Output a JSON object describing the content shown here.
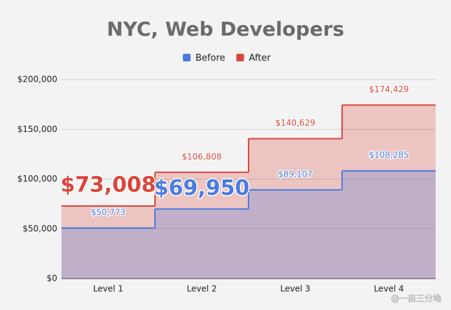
{
  "chart_data": {
    "type": "stepped-area",
    "title": "NYC, Web Developers",
    "categories": [
      "Level 1",
      "Level 2",
      "Level 3",
      "Level 4"
    ],
    "series": [
      {
        "name": "Before",
        "color": "#4a7be0",
        "values": [
          50773,
          69950,
          89107,
          108285
        ],
        "value_labels": [
          "$50,773",
          "$69,950",
          "$89,107",
          "$108,285"
        ],
        "large_labels": [
          1
        ]
      },
      {
        "name": "After",
        "color": "#d9473b",
        "values": [
          73008,
          106808,
          140629,
          174429
        ],
        "value_labels": [
          "$73,008",
          "$106,808",
          "$140,629",
          "$174,429"
        ],
        "large_labels": [
          0
        ]
      }
    ],
    "ylim": [
      0,
      200000
    ],
    "yticks": [
      {
        "value": 0,
        "label": "$0"
      },
      {
        "value": 50000,
        "label": "$50,000"
      },
      {
        "value": 100000,
        "label": "$100,000"
      },
      {
        "value": 150000,
        "label": "$150,000"
      },
      {
        "value": 200000,
        "label": "$200,000"
      }
    ],
    "grid": true,
    "legend": "top",
    "watermark": "@一亩三分地"
  }
}
